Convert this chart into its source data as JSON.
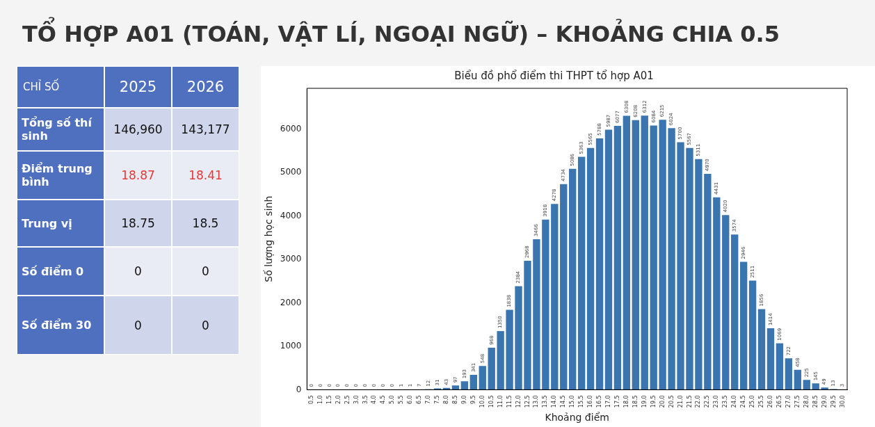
{
  "chart_data": [
    {
      "type": "other",
      "title": "TỔ HỢP A01 (TOÁN, VẬT LÍ, NGOẠI NGỮ) – KHOẢNG CHIA 0.5",
      "ylabel": "CHỈ SỐ",
      "categories": [
        "2025",
        "2026"
      ],
      "y_categories": [
        "Tổng số thí sinh",
        "Điểm trung bình",
        "Trung vị",
        "Số điểm 0",
        "Số điểm 30"
      ],
      "cell_labels": [
        [
          "146,960",
          "143,177"
        ],
        [
          "18.87",
          "18.41"
        ],
        [
          "18.75",
          "18.5"
        ],
        [
          "0",
          "0"
        ],
        [
          "0",
          "0"
        ]
      ]
    },
    {
      "type": "bar",
      "title": "Biểu đồ phổ điểm thi THPT tổ hợp A01",
      "xlabel": "Khoảng điểm",
      "ylabel": "Số lượng học sinh",
      "color": "#3a75b0",
      "categories": [
        "0.5",
        "1.0",
        "1.5",
        "2.0",
        "2.5",
        "3.0",
        "3.5",
        "4.0",
        "4.5",
        "5.0",
        "5.5",
        "6.0",
        "6.5",
        "7.0",
        "7.5",
        "8.0",
        "8.5",
        "9.0",
        "9.5",
        "10.0",
        "10.5",
        "11.0",
        "11.5",
        "12.0",
        "12.5",
        "13.0",
        "13.5",
        "14.0",
        "14.5",
        "15.0",
        "15.5",
        "16.0",
        "16.5",
        "17.0",
        "17.5",
        "18.0",
        "18.5",
        "19.0",
        "19.5",
        "20.0",
        "20.5",
        "21.0",
        "21.5",
        "22.0",
        "22.5",
        "23.0",
        "23.5",
        "24.0",
        "24.5",
        "25.0",
        "25.5",
        "26.0",
        "26.5",
        "27.0",
        "27.5",
        "28.0",
        "28.5",
        "29.0",
        "29.5",
        "30.0"
      ],
      "values": [
        0,
        0,
        0,
        0,
        0,
        0,
        0,
        0,
        0,
        0,
        1,
        1,
        7,
        12,
        31,
        43,
        97,
        193,
        341,
        548,
        968,
        1350,
        1838,
        2384,
        2968,
        3466,
        3918,
        4278,
        4734,
        5086,
        5363,
        5565,
        5788,
        5987,
        6077,
        6308,
        6208,
        6312,
        6084,
        6215,
        6024,
        5700,
        5567,
        5311,
        4970,
        4431,
        4020,
        3574,
        2946,
        2511,
        1856,
        1414,
        1069,
        722,
        458,
        225,
        145,
        49,
        13,
        3
      ],
      "ylim": [
        0,
        6940
      ],
      "yticks": [
        0,
        1000,
        2000,
        3000,
        4000,
        5000,
        6000
      ],
      "grid": false,
      "legend": false,
      "data_labels": true
    }
  ]
}
